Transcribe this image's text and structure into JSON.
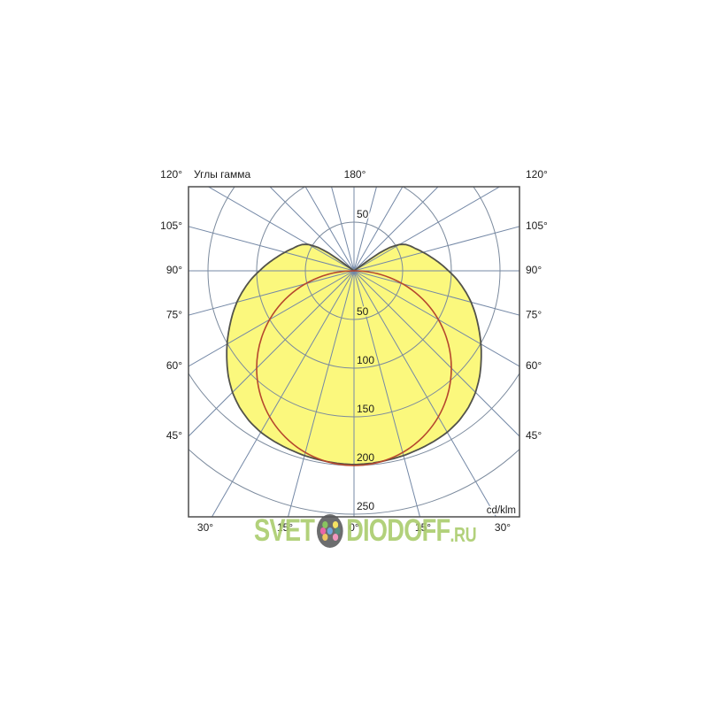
{
  "watermark": {
    "prefix": "SVET",
    "suffix": "DIODOFF",
    "tld": ".RU",
    "text_color": "#A8CB69",
    "logo": {
      "name": "svetodiodoff-dots-logo",
      "bg_color": "#58595B",
      "center_dot_color": "#5B9BD5",
      "ring_dot_colors": [
        "#79BD4A",
        "#F4E04E",
        "#3F7D6D",
        "#F089B6",
        "#EFBF4C",
        "#E8509B"
      ]
    }
  },
  "chart_data": {
    "type": "polar_photometric",
    "title": "Углы гамма",
    "unit_label": "cd/klm",
    "top_label": "180°",
    "side_labels": [
      {
        "gamma": 120,
        "text": "120°"
      },
      {
        "gamma": 105,
        "text": "105°"
      },
      {
        "gamma": 90,
        "text": "90°"
      },
      {
        "gamma": 75,
        "text": "75°"
      },
      {
        "gamma": 60,
        "text": "60°"
      },
      {
        "gamma": 45,
        "text": "45°"
      }
    ],
    "bottom_labels": [
      {
        "gamma": -30,
        "text": "30°"
      },
      {
        "gamma": -15,
        "text": "15°"
      },
      {
        "gamma": 0,
        "text": "0°"
      },
      {
        "gamma": 15,
        "text": "15°"
      },
      {
        "gamma": 30,
        "text": "30°"
      }
    ],
    "rings": [
      {
        "value": 50,
        "label": "50"
      },
      {
        "value": 100,
        "label": "100"
      },
      {
        "value": 150,
        "label": "150"
      },
      {
        "value": 200,
        "label": "200"
      },
      {
        "value": 250,
        "label": "250"
      }
    ],
    "upper_ring_label": {
      "value": 50,
      "label": "50"
    },
    "ray_step_deg": 15,
    "axis_range": [
      0,
      250
    ],
    "grid": true,
    "legend": false,
    "series": [
      {
        "name": "luminaire-intensity",
        "kind": "filled-polar-curve",
        "fill": "#FBF87D",
        "stroke": "#52524A",
        "points_gamma_r": [
          [
            0,
            199
          ],
          [
            5,
            198.5
          ],
          [
            10,
            197.5
          ],
          [
            15,
            196.5
          ],
          [
            20,
            195
          ],
          [
            25,
            193.5
          ],
          [
            30,
            191.5
          ],
          [
            35,
            188
          ],
          [
            40,
            183
          ],
          [
            45,
            176.5
          ],
          [
            50,
            168.5
          ],
          [
            55,
            159.5
          ],
          [
            60,
            150.5
          ],
          [
            65,
            141.5
          ],
          [
            70,
            133
          ],
          [
            75,
            124.5
          ],
          [
            80,
            115.5
          ],
          [
            85,
            106.5
          ],
          [
            90,
            97
          ],
          [
            95,
            88.5
          ],
          [
            100,
            80.5
          ],
          [
            105,
            73.5
          ],
          [
            110,
            67
          ],
          [
            114,
            63
          ],
          [
            117,
            59.5
          ],
          [
            120,
            54
          ],
          [
            123,
            44
          ],
          [
            125,
            32
          ],
          [
            126.5,
            14
          ],
          [
            127,
            0
          ]
        ]
      },
      {
        "name": "cosine-reference",
        "kind": "circle-through-pole",
        "stroke": "#B5472E",
        "max_value": 200
      }
    ],
    "colors": {
      "ray_line": "#7488A6",
      "ring_line": "#7B8A9D",
      "border": "#4D4D4D",
      "label_text": "#1C1C1C"
    }
  }
}
